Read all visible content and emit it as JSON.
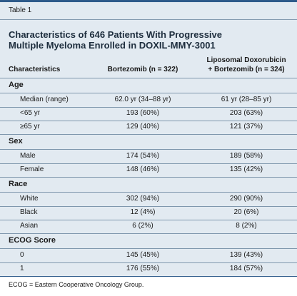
{
  "label": "Table 1",
  "title": [
    "Characteristics of 646 Patients With Progressive",
    "Multiple Myeloma Enrolled in DOXIL-MMY-3001"
  ],
  "columns": [
    "Characteristics",
    "Bortezomib (n = 322)",
    [
      "Liposomal Doxorubicin",
      "+ Bortezomib (n = 324)"
    ]
  ],
  "sections": [
    {
      "heading": "Age",
      "rows": [
        [
          "Median (range)",
          "62.0 yr (34–88 yr)",
          "61 yr (28–85 yr)"
        ],
        [
          "<65 yr",
          "193 (60%)",
          "203 (63%)"
        ],
        [
          "≥65 yr",
          "129 (40%)",
          "121 (37%)"
        ]
      ]
    },
    {
      "heading": "Sex",
      "rows": [
        [
          "Male",
          "174 (54%)",
          "189 (58%)"
        ],
        [
          "Female",
          "148 (46%)",
          "135 (42%)"
        ]
      ]
    },
    {
      "heading": "Race",
      "rows": [
        [
          "White",
          "302 (94%)",
          "290 (90%)"
        ],
        [
          "Black",
          "12 (4%)",
          "20 (6%)"
        ],
        [
          "Asian",
          "6 (2%)",
          "8 (2%)"
        ]
      ]
    },
    {
      "heading": "ECOG Score",
      "rows": [
        [
          "0",
          "145 (45%)",
          "139 (43%)"
        ],
        [
          "1",
          "176 (55%)",
          "184 (57%)"
        ]
      ]
    }
  ],
  "footnote": "ECOG = Eastern Cooperative Oncology Group."
}
